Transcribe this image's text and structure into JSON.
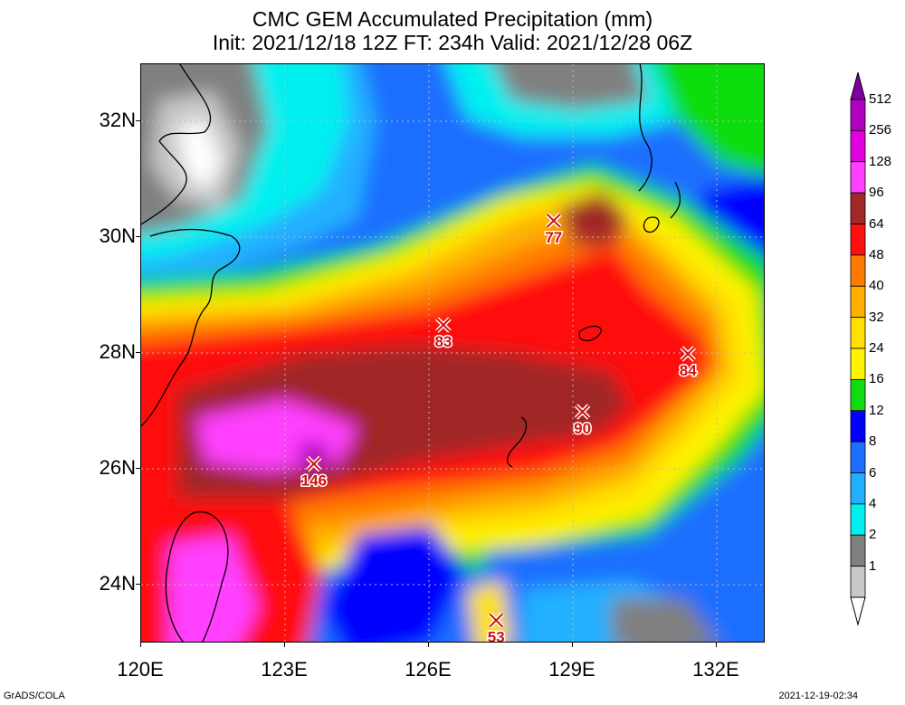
{
  "title": {
    "line1": "CMC GEM Accumulated Precipitation (mm)",
    "line2": "Init: 2021/12/18 12Z  FT: 234h  Valid: 2021/12/28 06Z"
  },
  "axes": {
    "lat_labels": [
      "32N",
      "30N",
      "28N",
      "26N",
      "24N"
    ],
    "lon_labels": [
      "120E",
      "123E",
      "126E",
      "129E",
      "132E"
    ],
    "lat_range": [
      23,
      33
    ],
    "lon_range": [
      120,
      133
    ]
  },
  "legend": {
    "levels": [
      "512",
      "256",
      "128",
      "96",
      "64",
      "48",
      "40",
      "32",
      "24",
      "16",
      "12",
      "8",
      "6",
      "4",
      "2",
      "1"
    ],
    "colors": [
      "#8000a0",
      "#b000c0",
      "#e000e0",
      "#ff40ff",
      "#a02828",
      "#ff1010",
      "#ff7a00",
      "#ffb000",
      "#ffe000",
      "#fff400",
      "#10dc10",
      "#0000ff",
      "#1e6eff",
      "#20b0ff",
      "#00f0f0",
      "#808080",
      "#c8c8c8",
      "#ffffff"
    ]
  },
  "markers": [
    {
      "value": "146",
      "lon": 123.6,
      "lat": 26.1
    },
    {
      "value": "83",
      "lon": 126.3,
      "lat": 28.5
    },
    {
      "value": "77",
      "lon": 128.6,
      "lat": 30.3
    },
    {
      "value": "90",
      "lon": 129.2,
      "lat": 27.0
    },
    {
      "value": "84",
      "lon": 131.4,
      "lat": 28.0
    },
    {
      "value": "53",
      "lon": 127.4,
      "lat": 23.4
    }
  ],
  "footer": {
    "left": "GrADS/COLA",
    "right": "2021-12-19-02:34"
  }
}
